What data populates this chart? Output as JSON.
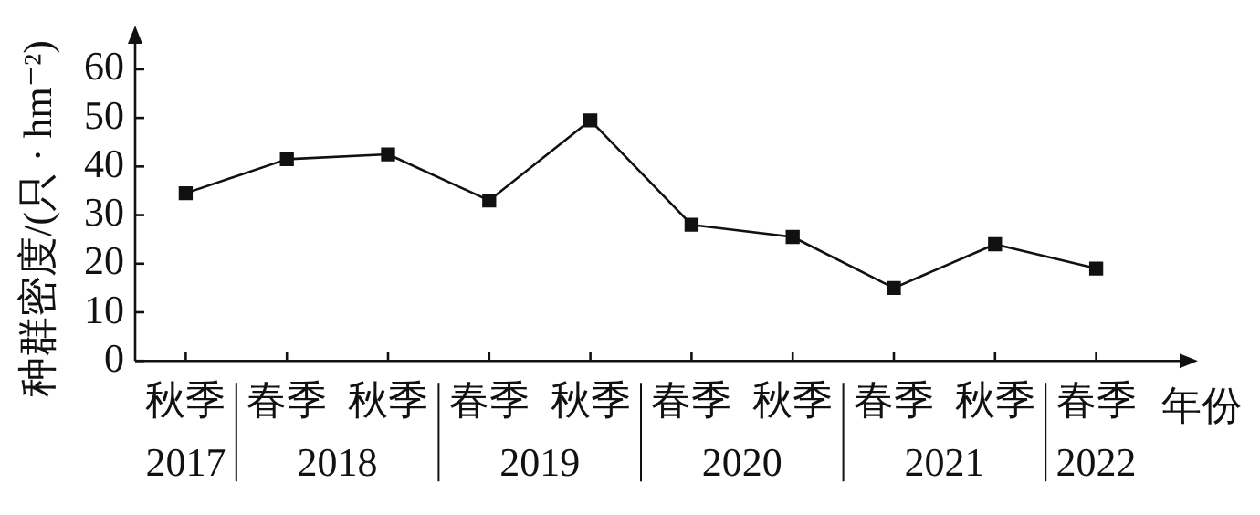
{
  "chart_data": {
    "type": "line",
    "ylabel": "种群密度/(只 · hm⁻²)",
    "xlabel": "年份",
    "categories": [
      "秋季",
      "春季",
      "秋季",
      "春季",
      "秋季",
      "春季",
      "秋季",
      "春季",
      "秋季",
      "春季"
    ],
    "series": [
      {
        "color": "#111111",
        "values": [
          34.5,
          41.5,
          42.5,
          33,
          49.5,
          28,
          25.5,
          15,
          24,
          19
        ]
      }
    ],
    "annotations": [
      "2017",
      "2018",
      "2019",
      "2020",
      "2021",
      "2022"
    ],
    "ylim": [
      0,
      66
    ],
    "yticks": [
      0,
      10,
      20,
      30,
      40,
      50,
      60
    ],
    "grid": false,
    "legend": false,
    "marker": "square",
    "line_style": "solid"
  }
}
